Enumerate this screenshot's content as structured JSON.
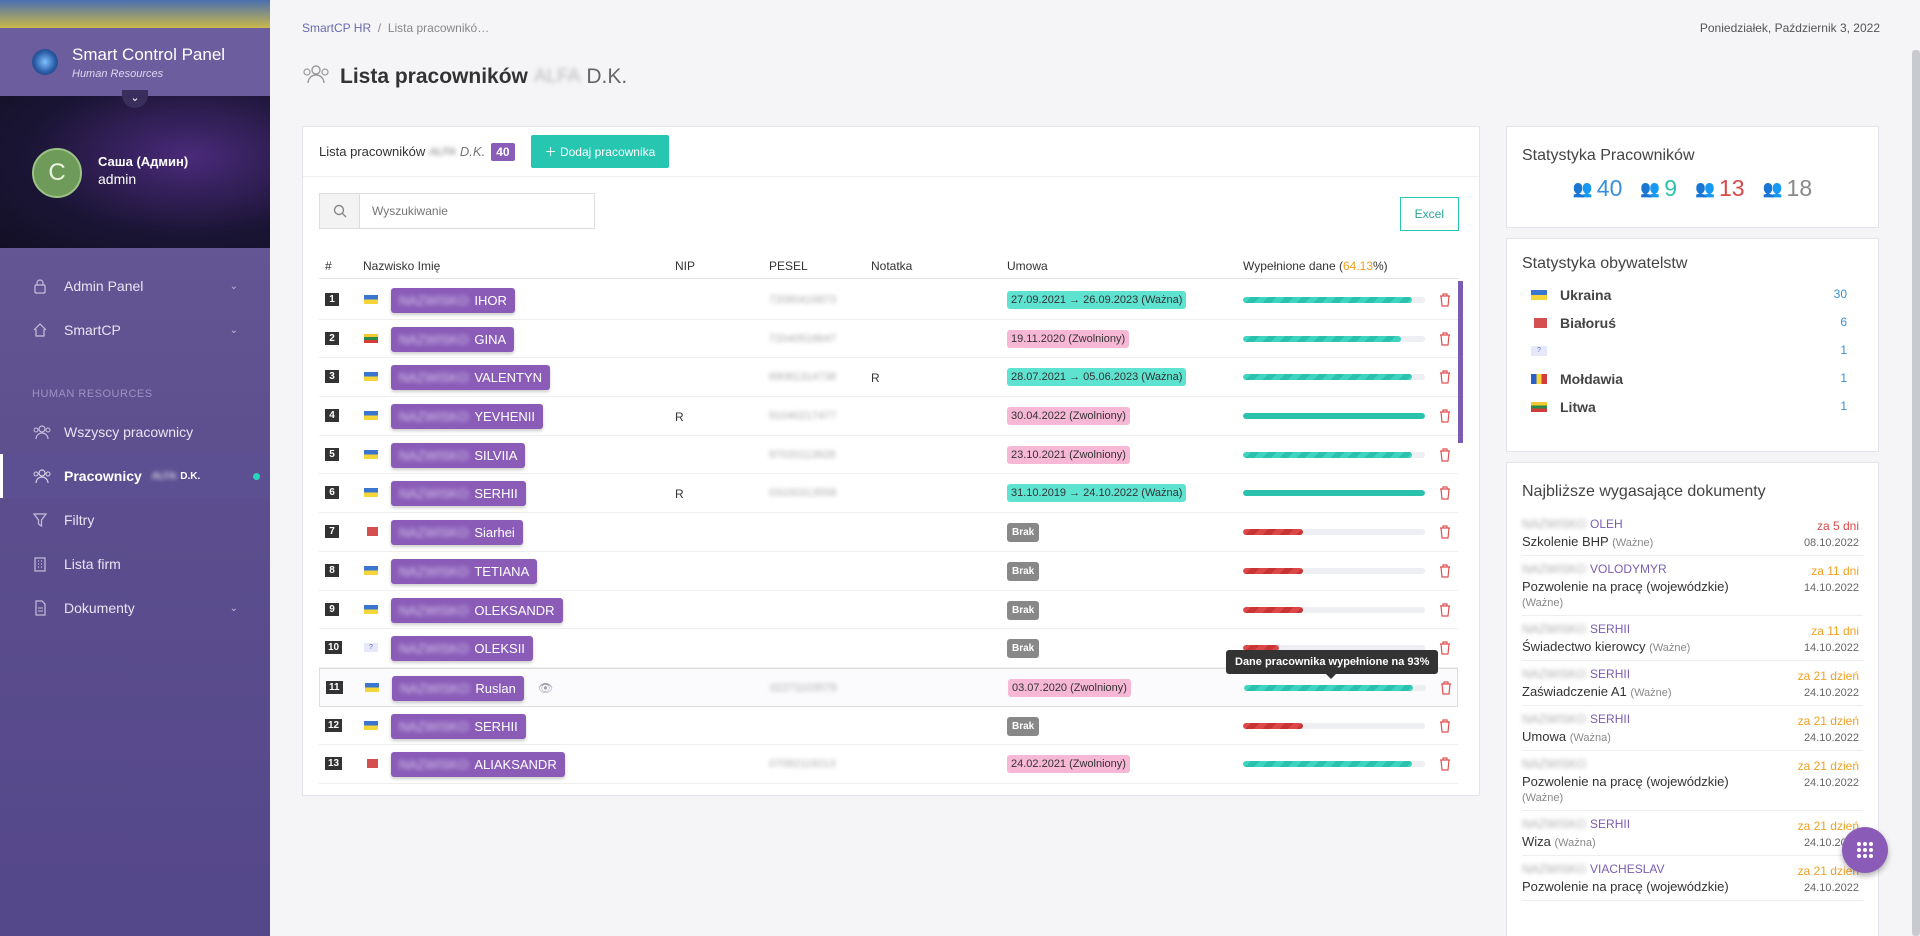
{
  "sidebar": {
    "brand_title": "Smart Control Panel",
    "brand_sub": "Human Resources",
    "avatar_letter": "C",
    "user_name": "Саша (Админ)",
    "user_role": "admin",
    "items": [
      {
        "label": "Admin Panel",
        "icon": "lock-icon"
      },
      {
        "label": "SmartCP",
        "icon": "home-icon"
      }
    ],
    "section_label": "HUMAN RESOURCES",
    "hr_items": [
      {
        "label": "Wszyscy pracownicy"
      },
      {
        "label": "Pracownicy",
        "suffix": "D.K."
      },
      {
        "label": "Filtry"
      },
      {
        "label": "Lista firm"
      },
      {
        "label": "Dokumenty"
      }
    ]
  },
  "header": {
    "breadcrumb_root": "SmartCP HR",
    "breadcrumb_current": "Lista pracownikó…",
    "date": "Poniedziałek, Październik 3, 2022",
    "title": "Lista pracowników",
    "title_blur": "ALFA",
    "title_suffix": "D.K."
  },
  "card": {
    "title": "Lista pracowników",
    "title_suffix": "D.K.",
    "count": "40",
    "add_label": "Dodaj pracownika",
    "search_placeholder": "Wyszukiwanie",
    "excel_label": "Excel"
  },
  "table": {
    "columns": {
      "num": "#",
      "name": "Nazwisko Imię",
      "nip": "NIP",
      "pesel": "PESEL",
      "note": "Notatka",
      "contract": "Umowa",
      "filled_prefix": "Wypełnione dane (",
      "filled_pct": "64.13",
      "filled_suffix": "%)"
    },
    "rows": [
      {
        "num": "1",
        "flag": "ua",
        "name": "IHOR",
        "nip": "",
        "pesel": "72080419873",
        "note": "",
        "contract": "27.09.2021 → 26.09.2023 (Ważna)",
        "ctype": "ok",
        "fill": 93,
        "fstyle": "g"
      },
      {
        "num": "2",
        "flag": "lt",
        "name": "GINA",
        "nip": "",
        "pesel": "72040518647",
        "note": "",
        "contract": "19.11.2020 (Zwolniony)",
        "ctype": "fired",
        "fill": 87,
        "fstyle": "g"
      },
      {
        "num": "3",
        "flag": "ua",
        "name": "VALENTYN",
        "nip": "",
        "pesel": "69081314738",
        "note": "R",
        "contract": "28.07.2021 → 05.06.2023 (Ważna)",
        "ctype": "ok",
        "fill": 93,
        "fstyle": "g"
      },
      {
        "num": "4",
        "flag": "ua",
        "name": "YEVHENII",
        "nip": "R",
        "pesel": "91040217477",
        "note": "",
        "contract": "30.04.2022 (Zwolniony)",
        "ctype": "fired",
        "fill": 100,
        "fstyle": "s"
      },
      {
        "num": "5",
        "flag": "ua",
        "name": "SILVIIA",
        "nip": "",
        "pesel": "97020113928",
        "note": "",
        "contract": "23.10.2021 (Zwolniony)",
        "ctype": "fired",
        "fill": 93,
        "fstyle": "g"
      },
      {
        "num": "6",
        "flag": "ua",
        "name": "SERHII",
        "nip": "R",
        "pesel": "03100313558",
        "note": "",
        "contract": "31.10.2019 → 24.10.2022 (Ważna)",
        "ctype": "ok",
        "fill": 100,
        "fstyle": "s"
      },
      {
        "num": "7",
        "flag": "by",
        "name": "Siarhei",
        "nip": "",
        "pesel": "",
        "note": "",
        "contract": "Brak",
        "ctype": "none",
        "fill": 33,
        "fstyle": "r"
      },
      {
        "num": "8",
        "flag": "ua",
        "name": "TETIANA",
        "nip": "",
        "pesel": "",
        "note": "",
        "contract": "Brak",
        "ctype": "none",
        "fill": 33,
        "fstyle": "r"
      },
      {
        "num": "9",
        "flag": "ua",
        "name": "OLEKSANDR",
        "nip": "",
        "pesel": "",
        "note": "",
        "contract": "Brak",
        "ctype": "none",
        "fill": 33,
        "fstyle": "r"
      },
      {
        "num": "10",
        "flag": "q",
        "name": "OLEKSII",
        "nip": "",
        "pesel": "",
        "note": "",
        "contract": "Brak",
        "ctype": "none",
        "fill": 20,
        "fstyle": "r"
      },
      {
        "num": "11",
        "flag": "ua",
        "name": "Ruslan",
        "nip": "",
        "pesel": "02271103579",
        "note": "",
        "contract": "03.07.2020 (Zwolniony)",
        "ctype": "fired",
        "fill": 93,
        "fstyle": "g"
      },
      {
        "num": "12",
        "flag": "ua",
        "name": "SERHII",
        "nip": "",
        "pesel": "",
        "note": "",
        "contract": "Brak",
        "ctype": "none",
        "fill": 33,
        "fstyle": "r"
      },
      {
        "num": "13",
        "flag": "by",
        "name": "ALIAKSANDR",
        "nip": "",
        "pesel": "07082119213",
        "note": "",
        "contract": "24.02.2021 (Zwolniony)",
        "ctype": "fired",
        "fill": 93,
        "fstyle": "g"
      }
    ],
    "tooltip": "Dane pracownika wypełnione na 93%"
  },
  "stats": {
    "title": "Statystyka Pracowników",
    "values": [
      {
        "value": "40",
        "color": "#3a8fd8"
      },
      {
        "value": "9",
        "color": "#2ac2ad"
      },
      {
        "value": "13",
        "color": "#d84848"
      },
      {
        "value": "18",
        "color": "#888888"
      }
    ]
  },
  "citizenship": {
    "title": "Statystyka obywatelstw",
    "rows": [
      {
        "flag": "ua",
        "name": "Ukraina",
        "count": "30"
      },
      {
        "flag": "by",
        "name": "Białoruś",
        "count": "6"
      },
      {
        "flag": "q",
        "name": "",
        "count": "1"
      },
      {
        "flag": "md",
        "name": "Mołdawia",
        "count": "1"
      },
      {
        "flag": "lt",
        "name": "Litwa",
        "count": "1"
      }
    ]
  },
  "documents": {
    "title": "Najbliższe wygasające dokumenty",
    "items": [
      {
        "name": "OLEH",
        "type": "Szkolenie BHP",
        "status": "(Ważne)",
        "due": "za 5 dni",
        "date": "08.10.2022",
        "tone": "red"
      },
      {
        "name": "VOLODYMYR",
        "type": "Pozwolenie na pracę (wojewódzkie)",
        "status": "(Ważne)",
        "due": "za 11 dni",
        "date": "14.10.2022",
        "tone": "orange"
      },
      {
        "name": "SERHII",
        "type": "Świadectwo kierowcy",
        "status": "(Ważne)",
        "due": "za 11 dni",
        "date": "14.10.2022",
        "tone": "orange"
      },
      {
        "name": "SERHII",
        "type": "Zaświadczenie A1",
        "status": "(Ważne)",
        "due": "za 21 dzień",
        "date": "24.10.2022",
        "tone": "orange"
      },
      {
        "name": "SERHII",
        "type": "Umowa",
        "status": "(Ważna)",
        "due": "za 21 dzień",
        "date": "24.10.2022",
        "tone": "orange"
      },
      {
        "name": "",
        "type": "Pozwolenie na pracę (wojewódzkie)",
        "status": "(Ważne)",
        "due": "za 21 dzień",
        "date": "24.10.2022",
        "tone": "orange"
      },
      {
        "name": "SERHII",
        "type": "Wiza",
        "status": "(Ważna)",
        "due": "za 21 dzień",
        "date": "24.10.2022",
        "tone": "orange"
      },
      {
        "name": "VIACHESLAV",
        "type": "Pozwolenie na pracę (wojewódzkie)",
        "status": "",
        "due": "za 21 dzień",
        "date": "24.10.2022",
        "tone": "orange"
      }
    ]
  }
}
